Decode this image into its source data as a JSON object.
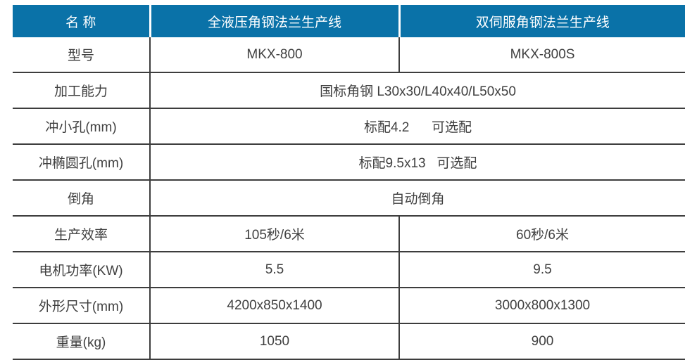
{
  "accent_color": "#0a72a8",
  "line_color": "#3d3d3d",
  "text_color": "#404040",
  "table": {
    "header": {
      "name_col": "名 称",
      "product1": "全液压角钢法兰生产线",
      "product2": "双伺服角钢法兰生产线"
    },
    "rows": [
      {
        "label": "型号",
        "col2": "MKX-800",
        "col3": "MKX-800S"
      },
      {
        "label": "加工能力",
        "value": "国标角钢 L30x30/L40x40/L50x50"
      },
      {
        "label": "冲小孔(mm)",
        "value": "标配4.2      可选配"
      },
      {
        "label": "冲椭圆孔(mm)",
        "value": "标配9.5x13   可选配"
      },
      {
        "label": "倒角",
        "value": "自动倒角"
      },
      {
        "label": "生产效率",
        "col2": "105秒/6米",
        "col3": "60秒/6米"
      },
      {
        "label": "电机功率(KW)",
        "col2": "5.5",
        "col3": "9.5"
      },
      {
        "label": "外形尺寸(mm)",
        "col2": "4200x850x1400",
        "col3": "3000x800x1300"
      },
      {
        "label": "重量(kg)",
        "col2": "1050",
        "col3": "900"
      }
    ]
  }
}
